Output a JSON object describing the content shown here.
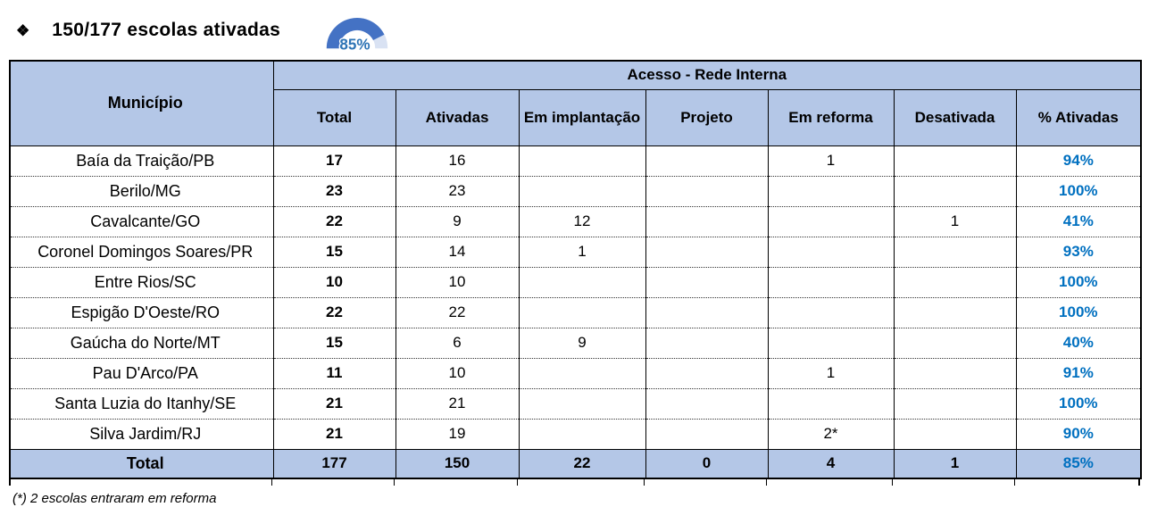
{
  "header": {
    "bullet": "❖",
    "title": "150/177 escolas ativadas",
    "gauge": {
      "percent": 85,
      "label": "85%",
      "filled_color": "#4472C4",
      "remainder_color": "#D9E2F3",
      "label_color": "#2E74B5"
    }
  },
  "table": {
    "municipality_header": "Município",
    "group_header": "Acesso - Rede Interna",
    "columns": [
      "Total",
      "Ativadas",
      "Em implantação",
      "Projeto",
      "Em reforma",
      "Desativada",
      "% Ativadas"
    ],
    "header_bg": "#B4C7E7",
    "percent_color": "#0070C0",
    "rows": [
      {
        "municipio": "Baía da Traição/PB",
        "total": "17",
        "ativadas": "16",
        "em_implantacao": "",
        "projeto": "",
        "em_reforma": "1",
        "desativada": "",
        "pct_ativadas": "94%"
      },
      {
        "municipio": "Berilo/MG",
        "total": "23",
        "ativadas": "23",
        "em_implantacao": "",
        "projeto": "",
        "em_reforma": "",
        "desativada": "",
        "pct_ativadas": "100%"
      },
      {
        "municipio": "Cavalcante/GO",
        "total": "22",
        "ativadas": "9",
        "em_implantacao": "12",
        "projeto": "",
        "em_reforma": "",
        "desativada": "1",
        "pct_ativadas": "41%"
      },
      {
        "municipio": "Coronel Domingos Soares/PR",
        "total": "15",
        "ativadas": "14",
        "em_implantacao": "1",
        "projeto": "",
        "em_reforma": "",
        "desativada": "",
        "pct_ativadas": "93%"
      },
      {
        "municipio": "Entre Rios/SC",
        "total": "10",
        "ativadas": "10",
        "em_implantacao": "",
        "projeto": "",
        "em_reforma": "",
        "desativada": "",
        "pct_ativadas": "100%"
      },
      {
        "municipio": "Espigão D'Oeste/RO",
        "total": "22",
        "ativadas": "22",
        "em_implantacao": "",
        "projeto": "",
        "em_reforma": "",
        "desativada": "",
        "pct_ativadas": "100%"
      },
      {
        "municipio": "Gaúcha do Norte/MT",
        "total": "15",
        "ativadas": "6",
        "em_implantacao": "9",
        "projeto": "",
        "em_reforma": "",
        "desativada": "",
        "pct_ativadas": "40%"
      },
      {
        "municipio": "Pau D'Arco/PA",
        "total": "11",
        "ativadas": "10",
        "em_implantacao": "",
        "projeto": "",
        "em_reforma": "1",
        "desativada": "",
        "pct_ativadas": "91%"
      },
      {
        "municipio": "Santa Luzia do Itanhy/SE",
        "total": "21",
        "ativadas": "21",
        "em_implantacao": "",
        "projeto": "",
        "em_reforma": "",
        "desativada": "",
        "pct_ativadas": "100%"
      },
      {
        "municipio": "Silva Jardim/RJ",
        "total": "21",
        "ativadas": "19",
        "em_implantacao": "",
        "projeto": "",
        "em_reforma": "2*",
        "desativada": "",
        "pct_ativadas": "90%"
      }
    ],
    "total_row": {
      "municipio": "Total",
      "total": "177",
      "ativadas": "150",
      "em_implantacao": "22",
      "projeto": "0",
      "em_reforma": "4",
      "desativada": "1",
      "pct_ativadas": "85%"
    },
    "footnote": "(*) 2 escolas entraram em reforma"
  }
}
